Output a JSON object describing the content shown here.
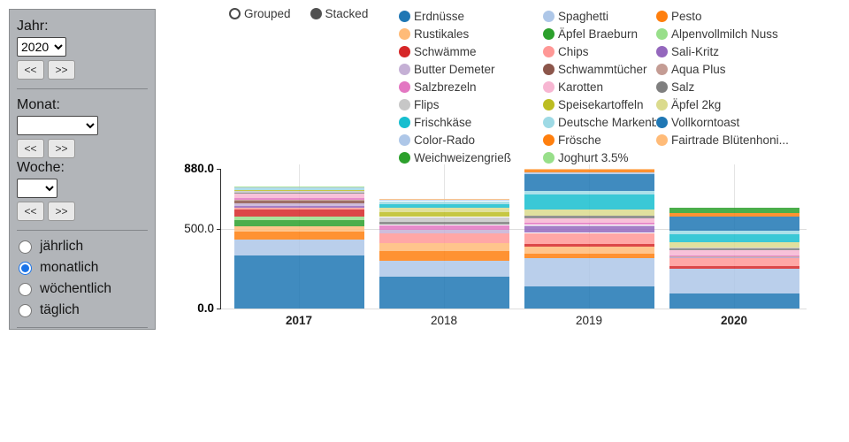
{
  "sidebar": {
    "year_label": "Jahr:",
    "year_value": "2020",
    "prev_label": "<<",
    "next_label": ">>",
    "month_label": "Monat:",
    "month_value": "",
    "week_label": "Woche:",
    "week_value": "",
    "frequency_options": [
      {
        "label": "jährlich",
        "selected": false
      },
      {
        "label": "monatlich",
        "selected": true
      },
      {
        "label": "wöchentlich",
        "selected": false
      },
      {
        "label": "täglich",
        "selected": false
      }
    ],
    "radio_accent_color": "#1a73e8"
  },
  "mode_toggle": {
    "options": [
      {
        "label": "Grouped",
        "selected": false
      },
      {
        "label": "Stacked",
        "selected": true
      }
    ]
  },
  "chart_data": {
    "type": "bar",
    "stacked": true,
    "categories": [
      {
        "label": "2017",
        "bold": true
      },
      {
        "label": "2018",
        "bold": false
      },
      {
        "label": "2019",
        "bold": false
      },
      {
        "label": "2020",
        "bold": true
      }
    ],
    "ylim": [
      0,
      880
    ],
    "yticks": [
      {
        "label": "0.0",
        "value": 0,
        "bold": true
      },
      {
        "label": "500.0",
        "value": 500,
        "bold": false
      },
      {
        "label": "880.0",
        "value": 880,
        "bold": true
      }
    ],
    "grid": true,
    "legend_position": "top",
    "series": [
      {
        "name": "Erdnüsse",
        "color": "#1f77b4",
        "values": [
          335,
          200,
          140,
          95
        ]
      },
      {
        "name": "Spaghetti",
        "color": "#aec7e8",
        "values": [
          100,
          100,
          175,
          155
        ]
      },
      {
        "name": "Pesto",
        "color": "#ff7f0e",
        "values": [
          50,
          60,
          28,
          0
        ]
      },
      {
        "name": "Rustikales",
        "color": "#ffbb78",
        "values": [
          33,
          50,
          44,
          0
        ]
      },
      {
        "name": "Äpfel Braeburn",
        "color": "#2ca02c",
        "values": [
          40,
          0,
          0,
          0
        ]
      },
      {
        "name": "Alpenvollmilch Nuss",
        "color": "#98df8a",
        "values": [
          22,
          0,
          0,
          0
        ]
      },
      {
        "name": "Schwämme",
        "color": "#d62728",
        "values": [
          40,
          0,
          18,
          15
        ]
      },
      {
        "name": "Chips",
        "color": "#ff9896",
        "values": [
          12,
          60,
          70,
          50
        ]
      },
      {
        "name": "Sali-Kritz",
        "color": "#9467bd",
        "values": [
          11,
          0,
          40,
          5
        ]
      },
      {
        "name": "Butter Demeter",
        "color": "#c5b0d5",
        "values": [
          17,
          22,
          10,
          5
        ]
      },
      {
        "name": "Schwammtücher",
        "color": "#8c564b",
        "values": [
          17,
          0,
          0,
          0
        ]
      },
      {
        "name": "Aqua Plus",
        "color": "#c49c94",
        "values": [
          6,
          0,
          0,
          5
        ]
      },
      {
        "name": "Salzbrezeln",
        "color": "#e377c2",
        "values": [
          11,
          33,
          13,
          5
        ]
      },
      {
        "name": "Karotten",
        "color": "#f7b6d2",
        "values": [
          28,
          0,
          30,
          33
        ]
      },
      {
        "name": "Salz",
        "color": "#7f7f7f",
        "values": [
          6,
          22,
          18,
          12
        ]
      },
      {
        "name": "Flips",
        "color": "#c7c7c7",
        "values": [
          11,
          28,
          0,
          5
        ]
      },
      {
        "name": "Speisekartoffeln",
        "color": "#bcbd22",
        "values": [
          6,
          28,
          0,
          0
        ]
      },
      {
        "name": "Äpfel 2kg",
        "color": "#dbdb8d",
        "values": [
          0,
          28,
          37,
          33
        ]
      },
      {
        "name": "Frischkäse",
        "color": "#17becf",
        "values": [
          0,
          22,
          93,
          50
        ]
      },
      {
        "name": "Deutsche Markenbutte...",
        "color": "#9edae5",
        "values": [
          11,
          22,
          24,
          22
        ]
      },
      {
        "name": "Vollkorntoast",
        "color": "#1f77b4",
        "values": [
          0,
          0,
          106,
          90
        ]
      },
      {
        "name": "Color-Rado",
        "color": "#aec7e8",
        "values": [
          6,
          11,
          11,
          0
        ]
      },
      {
        "name": "Frösche",
        "color": "#ff7f0e",
        "values": [
          0,
          0,
          18,
          22
        ]
      },
      {
        "name": "Fairtrade Blütenhoni...",
        "color": "#ffbb78",
        "values": [
          0,
          5,
          3,
          0
        ]
      },
      {
        "name": "Weichweizengrieß",
        "color": "#2ca02c",
        "values": [
          0,
          0,
          0,
          33
        ]
      },
      {
        "name": "Joghurt 3.5%",
        "color": "#98df8a",
        "values": [
          4,
          0,
          0,
          0
        ]
      }
    ]
  }
}
